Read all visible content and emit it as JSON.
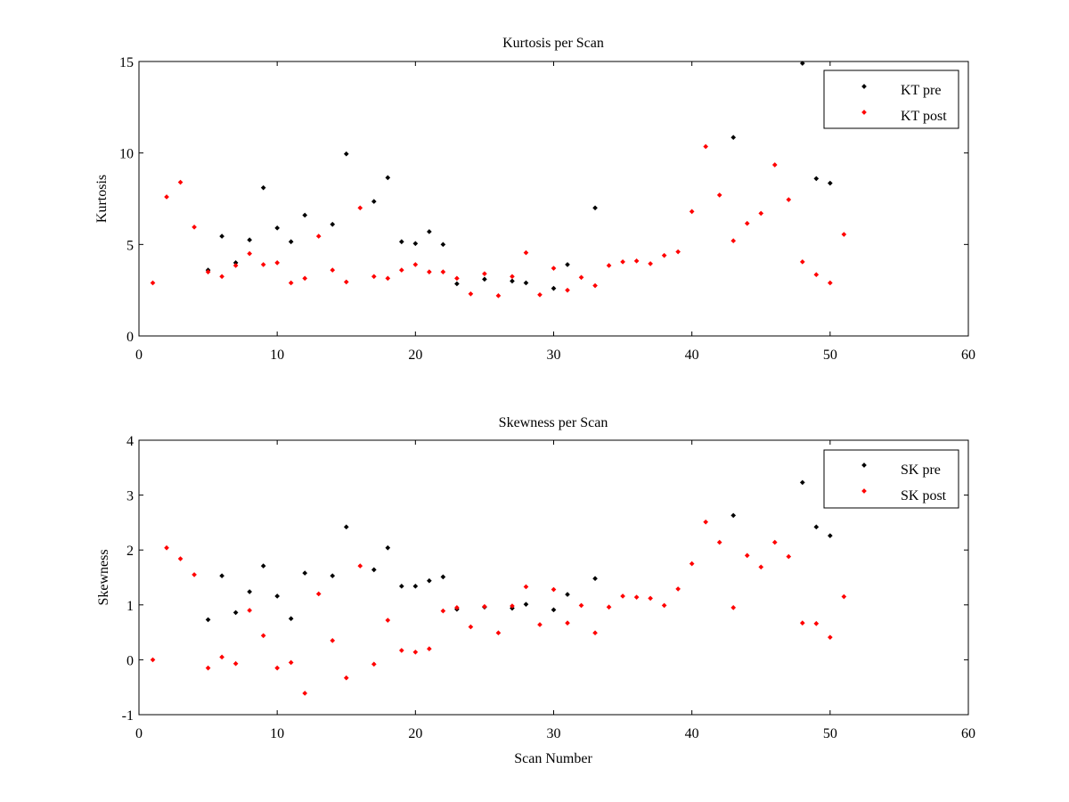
{
  "chart_data": [
    {
      "type": "scatter",
      "title": "Kurtosis per Scan",
      "xlabel": "",
      "ylabel": "Kurtosis",
      "xlim": [
        0,
        60
      ],
      "ylim": [
        0,
        15
      ],
      "xticks": [
        0,
        10,
        20,
        30,
        40,
        50,
        60
      ],
      "yticks": [
        0,
        5,
        10,
        15
      ],
      "grid": false,
      "legend_position": "top-right",
      "series": [
        {
          "name": "KT pre",
          "color": "#000000",
          "points": [
            [
              5,
              3.6
            ],
            [
              6,
              5.45
            ],
            [
              7,
              4.0
            ],
            [
              8,
              5.25
            ],
            [
              9,
              8.1
            ],
            [
              10,
              5.9
            ],
            [
              11,
              5.15
            ],
            [
              12,
              6.6
            ],
            [
              14,
              6.1
            ],
            [
              15,
              9.95
            ],
            [
              17,
              7.35
            ],
            [
              18,
              8.65
            ],
            [
              19,
              5.15
            ],
            [
              20,
              5.05
            ],
            [
              21,
              5.7
            ],
            [
              22,
              5.0
            ],
            [
              23,
              2.85
            ],
            [
              25,
              3.1
            ],
            [
              27,
              3.0
            ],
            [
              28,
              2.9
            ],
            [
              30,
              2.6
            ],
            [
              31,
              3.9
            ],
            [
              33,
              7.0
            ],
            [
              43,
              10.85
            ],
            [
              48,
              14.9
            ],
            [
              49,
              8.6
            ],
            [
              50,
              8.35
            ]
          ]
        },
        {
          "name": "KT post",
          "color": "#ff0000",
          "points": [
            [
              1,
              2.9
            ],
            [
              2,
              7.6
            ],
            [
              3,
              8.4
            ],
            [
              4,
              5.95
            ],
            [
              5,
              3.5
            ],
            [
              6,
              3.25
            ],
            [
              7,
              3.85
            ],
            [
              8,
              4.5
            ],
            [
              9,
              3.9
            ],
            [
              10,
              4.0
            ],
            [
              11,
              2.9
            ],
            [
              12,
              3.15
            ],
            [
              13,
              5.45
            ],
            [
              14,
              3.6
            ],
            [
              15,
              2.95
            ],
            [
              16,
              7.0
            ],
            [
              17,
              3.25
            ],
            [
              18,
              3.15
            ],
            [
              19,
              3.6
            ],
            [
              20,
              3.9
            ],
            [
              21,
              3.5
            ],
            [
              22,
              3.5
            ],
            [
              23,
              3.15
            ],
            [
              24,
              2.3
            ],
            [
              25,
              3.4
            ],
            [
              26,
              2.2
            ],
            [
              27,
              3.25
            ],
            [
              28,
              4.55
            ],
            [
              29,
              2.25
            ],
            [
              30,
              3.7
            ],
            [
              31,
              2.5
            ],
            [
              32,
              3.2
            ],
            [
              33,
              2.75
            ],
            [
              34,
              3.85
            ],
            [
              35,
              4.05
            ],
            [
              36,
              4.1
            ],
            [
              37,
              3.95
            ],
            [
              38,
              4.4
            ],
            [
              39,
              4.6
            ],
            [
              40,
              6.8
            ],
            [
              41,
              10.35
            ],
            [
              42,
              7.7
            ],
            [
              43,
              5.2
            ],
            [
              44,
              6.15
            ],
            [
              45,
              6.7
            ],
            [
              46,
              9.35
            ],
            [
              47,
              7.45
            ],
            [
              48,
              4.05
            ],
            [
              49,
              3.35
            ],
            [
              50,
              2.9
            ],
            [
              51,
              5.55
            ]
          ]
        }
      ]
    },
    {
      "type": "scatter",
      "title": "Skewness per Scan",
      "xlabel": "Scan Number",
      "ylabel": "Skewness",
      "xlim": [
        0,
        60
      ],
      "ylim": [
        -1,
        4
      ],
      "xticks": [
        0,
        10,
        20,
        30,
        40,
        50,
        60
      ],
      "yticks": [
        -1,
        0,
        1,
        2,
        3,
        4
      ],
      "grid": false,
      "legend_position": "top-right",
      "series": [
        {
          "name": "SK pre",
          "color": "#000000",
          "points": [
            [
              5,
              0.73
            ],
            [
              6,
              1.53
            ],
            [
              7,
              0.86
            ],
            [
              8,
              1.24
            ],
            [
              9,
              1.71
            ],
            [
              10,
              1.16
            ],
            [
              11,
              0.75
            ],
            [
              12,
              1.58
            ],
            [
              14,
              1.53
            ],
            [
              15,
              2.42
            ],
            [
              17,
              1.64
            ],
            [
              18,
              2.04
            ],
            [
              19,
              1.34
            ],
            [
              20,
              1.34
            ],
            [
              21,
              1.44
            ],
            [
              22,
              1.51
            ],
            [
              23,
              0.92
            ],
            [
              25,
              0.96
            ],
            [
              27,
              0.94
            ],
            [
              28,
              1.01
            ],
            [
              30,
              0.91
            ],
            [
              31,
              1.19
            ],
            [
              33,
              1.48
            ],
            [
              43,
              2.63
            ],
            [
              48,
              3.23
            ],
            [
              49,
              2.42
            ],
            [
              50,
              2.26
            ]
          ]
        },
        {
          "name": "SK post",
          "color": "#ff0000",
          "points": [
            [
              1,
              0.0
            ],
            [
              2,
              2.04
            ],
            [
              3,
              1.84
            ],
            [
              4,
              1.55
            ],
            [
              5,
              -0.15
            ],
            [
              6,
              0.05
            ],
            [
              7,
              -0.07
            ],
            [
              8,
              0.9
            ],
            [
              9,
              0.44
            ],
            [
              10,
              -0.15
            ],
            [
              11,
              -0.05
            ],
            [
              12,
              -0.61
            ],
            [
              13,
              1.2
            ],
            [
              14,
              0.35
            ],
            [
              15,
              -0.33
            ],
            [
              16,
              1.71
            ],
            [
              17,
              -0.08
            ],
            [
              18,
              0.72
            ],
            [
              19,
              0.17
            ],
            [
              20,
              0.14
            ],
            [
              21,
              0.2
            ],
            [
              22,
              0.89
            ],
            [
              23,
              0.95
            ],
            [
              24,
              0.6
            ],
            [
              25,
              0.97
            ],
            [
              26,
              0.49
            ],
            [
              27,
              0.98
            ],
            [
              28,
              1.33
            ],
            [
              29,
              0.64
            ],
            [
              30,
              1.28
            ],
            [
              31,
              0.67
            ],
            [
              32,
              0.99
            ],
            [
              33,
              0.49
            ],
            [
              34,
              0.96
            ],
            [
              35,
              1.16
            ],
            [
              36,
              1.14
            ],
            [
              37,
              1.12
            ],
            [
              38,
              0.99
            ],
            [
              39,
              1.29
            ],
            [
              40,
              1.75
            ],
            [
              41,
              2.51
            ],
            [
              42,
              2.14
            ],
            [
              43,
              0.95
            ],
            [
              44,
              1.9
            ],
            [
              45,
              1.69
            ],
            [
              46,
              2.14
            ],
            [
              47,
              1.88
            ],
            [
              48,
              0.67
            ],
            [
              49,
              0.66
            ],
            [
              50,
              0.41
            ],
            [
              51,
              1.15
            ]
          ]
        }
      ]
    }
  ]
}
